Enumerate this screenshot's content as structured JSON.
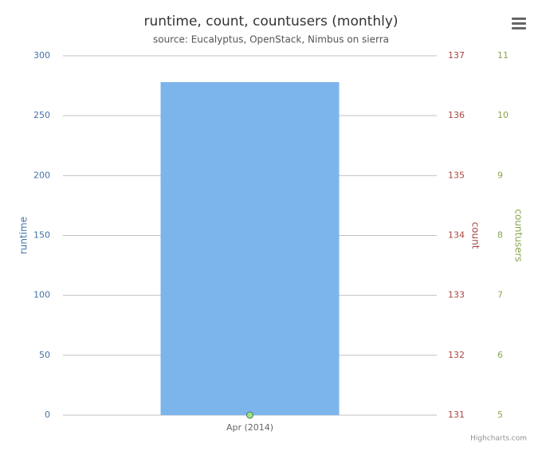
{
  "chart_data": {
    "type": "bar",
    "title": "runtime, count, countusers (monthly)",
    "subtitle": "source: Eucalyptus, OpenStack, Nimbus on sierra",
    "credits": "Highcharts.com",
    "categories": [
      "Apr (2014)"
    ],
    "series": [
      {
        "name": "runtime",
        "type": "bar",
        "color": "#7cb5ec",
        "values": [
          278
        ]
      },
      {
        "name": "countusers",
        "type": "line",
        "color": "#90ed7d",
        "axis": "y3",
        "values": [
          5
        ]
      }
    ],
    "ylabel": "runtime",
    "ylabel_color": "#4572a7",
    "ylim": [
      0,
      300
    ],
    "yticks": [
      0,
      50,
      100,
      150,
      200,
      250,
      300
    ],
    "y2label": "count",
    "y2label_color": "#aa4643",
    "y2lim": [
      131,
      137
    ],
    "y2ticks": [
      131,
      132,
      133,
      134,
      135,
      136,
      137
    ],
    "y3label": "countusers",
    "y3label_color": "#89a54e",
    "y3lim": [
      5,
      11
    ],
    "y3ticks": [
      5,
      6,
      7,
      8,
      9,
      10,
      11
    ],
    "grid": true
  }
}
